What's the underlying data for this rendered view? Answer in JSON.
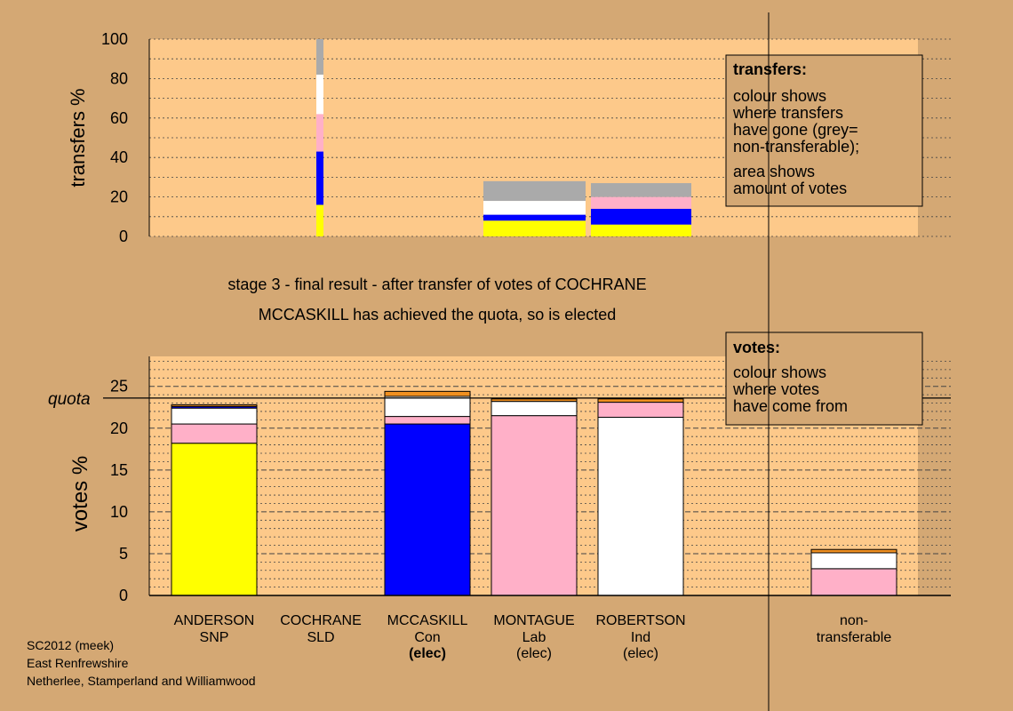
{
  "colors": {
    "background": "#d4a874",
    "plot_bg": "#fdc98a",
    "SNP": "#ffff00",
    "Con": "#0000ff",
    "Lab": "#ffb0c8",
    "Ind": "#ffffff",
    "other": "#f09020",
    "nontransferable": "#aaaaaa"
  },
  "captions": {
    "stage": "stage 3 - final result - after transfer of votes of COCHRANE",
    "elected": "MCCASKILL has achieved the quota, so is elected"
  },
  "footer": {
    "line1": "SC2012 (meek)",
    "line2": "East Renfrewshire",
    "line3": "Netherlee, Stamperland and Williamwood"
  },
  "chart_data": [
    {
      "type": "bar",
      "title": "",
      "ylabel": "transfers %",
      "ylim": [
        0,
        100
      ],
      "yticks": [
        0,
        20,
        40,
        60,
        80,
        100
      ],
      "stacked": true,
      "legend": {
        "placement": "top-right",
        "heading": "transfers:",
        "para1": [
          "colour shows",
          "where transfers",
          "have gone (grey=",
          "non-transferable);"
        ],
        "para2": [
          "area shows",
          "amount of votes"
        ]
      },
      "bars": [
        {
          "name": "COCHRANE",
          "segments": [
            {
              "party": "SNP",
              "value": 16
            },
            {
              "party": "Con",
              "value": 27
            },
            {
              "party": "Lab",
              "value": 19
            },
            {
              "party": "Ind",
              "value": 20
            },
            {
              "party": "nontransferable",
              "value": 18
            }
          ]
        },
        {
          "name": "MCCASKILL",
          "segments": [
            {
              "party": "SNP",
              "value": 8
            },
            {
              "party": "Con",
              "value": 3
            },
            {
              "party": "Ind",
              "value": 7
            },
            {
              "party": "nontransferable",
              "value": 10
            }
          ]
        },
        {
          "name": "MONTAGUE",
          "segments": [
            {
              "party": "SNP",
              "value": 6
            },
            {
              "party": "Con",
              "value": 8
            },
            {
              "party": "Lab",
              "value": 6
            },
            {
              "party": "nontransferable",
              "value": 7
            }
          ]
        }
      ]
    },
    {
      "type": "bar",
      "title": "",
      "ylabel": "votes %",
      "ylim": [
        0,
        28
      ],
      "yticks": [
        0,
        5,
        10,
        15,
        20,
        25
      ],
      "quota": 23.6,
      "quota_label": "quota",
      "stacked": true,
      "legend": {
        "placement": "top-right",
        "heading": "votes:",
        "lines": [
          "colour shows",
          "where votes",
          "have come from"
        ]
      },
      "categories": [
        {
          "name": "ANDERSON",
          "sub": "SNP",
          "elected": false
        },
        {
          "name": "COCHRANE",
          "sub": "SLD",
          "elected": false
        },
        {
          "name": "MCCASKILL",
          "sub": "Con",
          "elected": true,
          "note": "(elec)"
        },
        {
          "name": "MONTAGUE",
          "sub": "Lab",
          "elected": false,
          "note": "(elec)"
        },
        {
          "name": "ROBERTSON",
          "sub": "Ind",
          "elected": false,
          "note": "(elec)"
        },
        {
          "name": "non-",
          "sub": "transferable",
          "elected": false
        }
      ],
      "stacks": [
        [
          {
            "party": "SNP",
            "value": 18.2
          },
          {
            "party": "Lab",
            "value": 2.3
          },
          {
            "party": "Ind",
            "value": 1.9
          },
          {
            "party": "Con",
            "value": 0.2
          },
          {
            "party": "other",
            "value": 0.2
          }
        ],
        [],
        [
          {
            "party": "Con",
            "value": 20.5
          },
          {
            "party": "Lab",
            "value": 0.9
          },
          {
            "party": "Ind",
            "value": 2.4
          },
          {
            "party": "other",
            "value": 0.6
          }
        ],
        [
          {
            "party": "Lab",
            "value": 21.5
          },
          {
            "party": "Ind",
            "value": 1.7
          },
          {
            "party": "other",
            "value": 0.3
          }
        ],
        [
          {
            "party": "Ind",
            "value": 21.3
          },
          {
            "party": "Lab",
            "value": 1.8
          },
          {
            "party": "other",
            "value": 0.4
          }
        ],
        [
          {
            "party": "Lab",
            "value": 3.2
          },
          {
            "party": "Ind",
            "value": 1.9
          },
          {
            "party": "other",
            "value": 0.4
          }
        ]
      ]
    }
  ]
}
